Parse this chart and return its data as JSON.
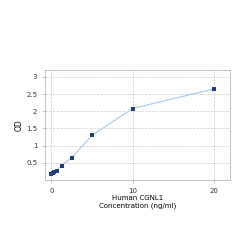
{
  "x": [
    0,
    0.156,
    0.313,
    0.625,
    1.25,
    2.5,
    5,
    10,
    20
  ],
  "y": [
    0.175,
    0.19,
    0.22,
    0.27,
    0.42,
    0.65,
    1.3,
    2.08,
    2.65
  ],
  "line_color": "#a8c8e8",
  "marker_color": "#1f3d7a",
  "marker_size": 3.5,
  "xlabel_line1": "Human CGNL1",
  "xlabel_line2": "Concentration (ng/ml)",
  "ylabel": "OD",
  "xlim": [
    -0.8,
    22
  ],
  "ylim": [
    0,
    3.2
  ],
  "yticks": [
    0.5,
    1.0,
    1.5,
    2.0,
    2.5,
    3.0
  ],
  "ytick_labels": [
    "0.5",
    "1",
    "1.5",
    "2",
    "2.5",
    "3"
  ],
  "xticks": [
    0,
    10,
    20
  ],
  "xtick_labels": [
    "0",
    "10",
    "20"
  ],
  "grid_color": "#cccccc",
  "grid_style": "--",
  "bg_color": "#ffffff",
  "xlabel_fontsize": 5.0,
  "ylabel_fontsize": 5.5,
  "tick_fontsize": 5.0,
  "line_width": 0.8
}
